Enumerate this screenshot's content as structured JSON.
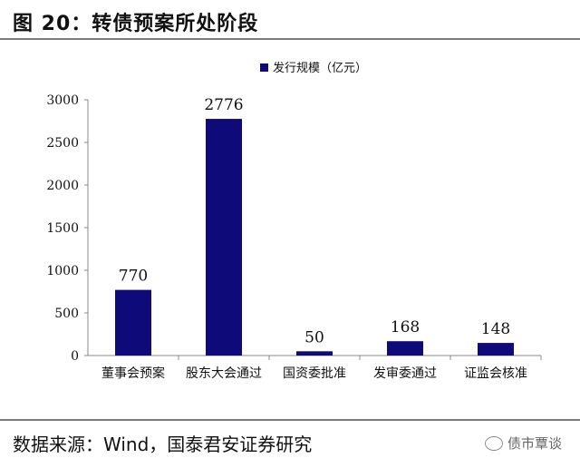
{
  "header": {
    "title": "图 20：转债预案所处阶段"
  },
  "chart_data": {
    "type": "bar",
    "categories": [
      "董事会预案",
      "股东大会通过",
      "国资委批准",
      "发审委通过",
      "证监会核准"
    ],
    "series": [
      {
        "name": "发行规模（亿元）",
        "values": [
          770,
          2776,
          50,
          168,
          148
        ],
        "color": "#0f0a7a"
      }
    ],
    "data_labels": [
      "770",
      "2776",
      "50",
      "168",
      "148"
    ],
    "y_ticks": [
      "0",
      "500",
      "1000",
      "1500",
      "2000",
      "2500",
      "3000"
    ],
    "ylim": [
      0,
      3000
    ],
    "grid": false,
    "legend_position": "top-center"
  },
  "footer": {
    "source": "数据来源：Wind，国泰君安证券研究",
    "watermark": "债市覃谈"
  }
}
